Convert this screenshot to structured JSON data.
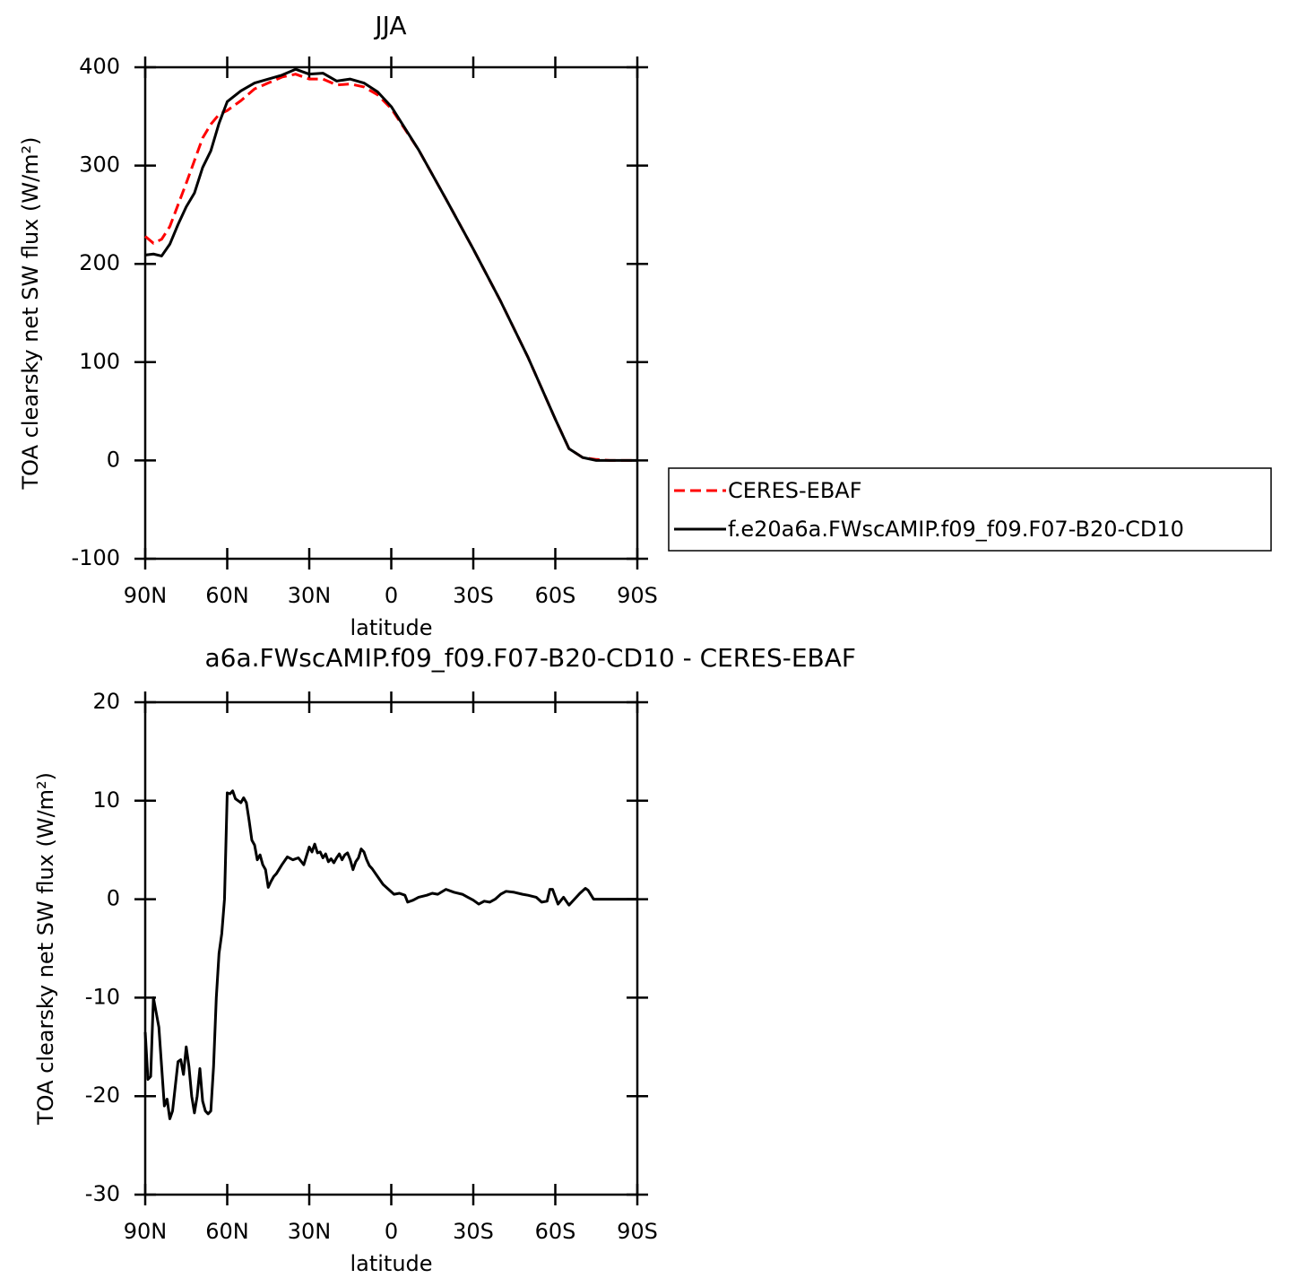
{
  "chart_data": [
    {
      "type": "line",
      "title": "JJA",
      "ylabel": "TOA clearsky net SW flux (W/m²)",
      "xlabel": "latitude",
      "x": [
        90,
        87,
        84,
        81,
        78,
        75,
        72,
        69,
        66,
        63,
        60,
        55,
        50,
        45,
        40,
        35,
        30,
        25,
        20,
        15,
        10,
        5,
        0,
        -10,
        -20,
        -30,
        -40,
        -50,
        -60,
        -65,
        -70,
        -75,
        -80,
        -90
      ],
      "series": [
        {
          "name": "CERES-EBAF",
          "color": "#ff0000",
          "linestyle": "dashed",
          "values": [
            228,
            221,
            225,
            238,
            260,
            282,
            305,
            328,
            342,
            352,
            356,
            366,
            378,
            384,
            390,
            393,
            388,
            388,
            382,
            383,
            380,
            372,
            358,
            316,
            266,
            215,
            162,
            105,
            42,
            12,
            3,
            1,
            0,
            0
          ]
        },
        {
          "name": "f.e20a6a.FWscAMIP.f09_f09.F07-B20-CD10",
          "color": "#000000",
          "linestyle": "solid",
          "values": [
            209,
            210,
            208,
            220,
            240,
            258,
            272,
            298,
            315,
            343,
            365,
            376,
            384,
            388,
            392,
            398,
            393,
            394,
            386,
            388,
            384,
            375,
            360,
            316,
            266,
            215,
            162,
            105,
            42,
            12,
            3,
            0,
            0,
            0
          ]
        }
      ],
      "xlim": [
        90,
        -90
      ],
      "xticks": [
        {
          "value": 90,
          "label": "90N"
        },
        {
          "value": 60,
          "label": "60N"
        },
        {
          "value": 30,
          "label": "30N"
        },
        0,
        {
          "value": -30,
          "label": "30S"
        },
        {
          "value": -60,
          "label": "60S"
        },
        {
          "value": -90,
          "label": "90S"
        }
      ],
      "ylim": [
        -100,
        400
      ],
      "yticks": [
        -100,
        0,
        100,
        200,
        300,
        400
      ],
      "legend": "right"
    },
    {
      "type": "line",
      "title": "a6a.FWscAMIP.f09_f09.F07-B20-CD10 - CERES-EBAF",
      "ylabel": "TOA clearsky net SW flux (W/m²)",
      "xlabel": "latitude",
      "x": [
        90,
        89,
        88,
        87,
        86,
        85,
        84,
        83,
        82,
        81,
        80,
        79,
        78,
        77,
        76,
        75,
        74,
        73,
        72,
        71,
        70,
        69,
        68,
        67,
        66,
        65,
        64,
        63,
        62,
        61,
        60,
        59,
        58,
        57,
        56,
        55,
        54,
        53,
        52,
        51,
        50,
        49,
        48,
        47,
        46,
        45,
        44,
        43,
        42,
        40,
        38,
        36,
        34,
        32,
        30,
        29,
        28,
        27,
        26,
        25,
        24,
        23,
        22,
        21,
        20,
        19,
        18,
        17,
        16,
        15,
        14,
        13,
        12,
        11,
        10,
        9,
        8,
        7,
        5,
        3,
        1,
        -1,
        -3,
        -5,
        -6,
        -8,
        -10,
        -13,
        -15,
        -17,
        -20,
        -23,
        -26,
        -28,
        -30,
        -32,
        -34,
        -36,
        -38,
        -40,
        -42,
        -45,
        -48,
        -50,
        -53,
        -55,
        -57,
        -58,
        -59,
        -61,
        -63,
        -64,
        -65,
        -67,
        -69,
        -71,
        -72,
        -74,
        -80,
        -90
      ],
      "series": [
        {
          "color": "#000000",
          "linestyle": "solid",
          "values": [
            -13.5,
            -18.3,
            -18,
            -10,
            -11.5,
            -13,
            -17,
            -21,
            -20.3,
            -22.3,
            -21.5,
            -19,
            -16.5,
            -16.3,
            -17.8,
            -15,
            -17,
            -20,
            -21.7,
            -20,
            -17.2,
            -20.5,
            -21.5,
            -21.8,
            -21.5,
            -17,
            -10,
            -5.5,
            -3.5,
            0,
            10.8,
            10.7,
            11,
            10.2,
            10,
            9.8,
            10.3,
            9.8,
            8,
            6,
            5.5,
            4,
            4.5,
            3.5,
            3,
            1.2,
            1.8,
            2.3,
            2.6,
            3.5,
            4.3,
            4,
            4.2,
            3.5,
            5.3,
            4.8,
            5.6,
            4.7,
            4.8,
            4.2,
            4.6,
            3.8,
            4.1,
            3.7,
            4.2,
            4.6,
            4,
            4.5,
            4.7,
            4,
            3,
            3.8,
            4.2,
            5.1,
            4.8,
            4,
            3.4,
            3.1,
            2.3,
            1.5,
            1,
            0.5,
            0.6,
            0.4,
            -0.3,
            -0.1,
            0.2,
            0.4,
            0.6,
            0.5,
            1,
            0.7,
            0.5,
            0.2,
            -0.1,
            -0.5,
            -0.2,
            -0.3,
            0,
            0.5,
            0.8,
            0.7,
            0.5,
            0.4,
            0.2,
            -0.3,
            -0.2,
            1,
            1,
            -0.5,
            0.2,
            -0.2,
            -0.6,
            0,
            0.6,
            1.1,
            0.9,
            0,
            0,
            0
          ]
        }
      ],
      "xlim": [
        90,
        -90
      ],
      "xticks": [
        {
          "value": 90,
          "label": "90N"
        },
        {
          "value": 60,
          "label": "60N"
        },
        {
          "value": 30,
          "label": "30N"
        },
        0,
        {
          "value": -30,
          "label": "30S"
        },
        {
          "value": -60,
          "label": "60S"
        },
        {
          "value": -90,
          "label": "90S"
        }
      ],
      "ylim": [
        -30,
        20
      ],
      "yticks": [
        -30,
        -20,
        -10,
        0,
        10,
        20
      ]
    }
  ]
}
